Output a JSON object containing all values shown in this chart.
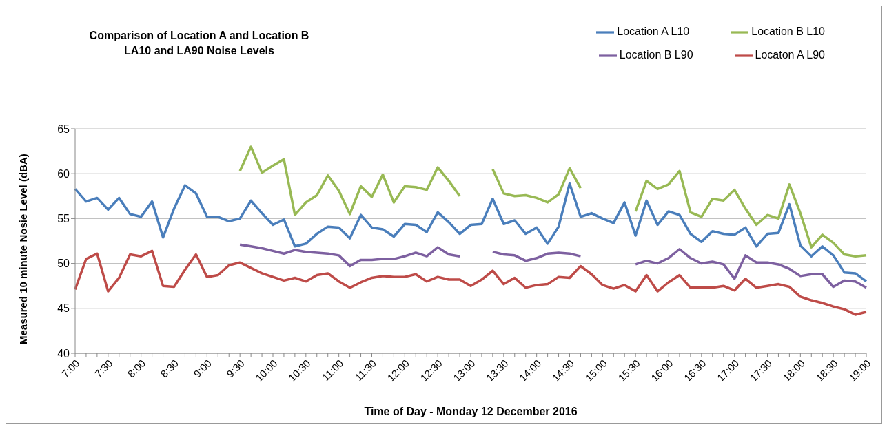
{
  "chart_data": {
    "type": "line",
    "title": "Comparison of Location A and Location B\nLA10 and LA90 Noise Levels",
    "xlabel": "Time of Day - Monday 12 December 2016",
    "ylabel": "Measured 10 minute Nosie Level (dBA)",
    "categories": [
      "7:00",
      null,
      null,
      "7:30",
      null,
      null,
      "8:00",
      null,
      null,
      "8:30",
      null,
      null,
      "9:00",
      null,
      null,
      "9:30",
      null,
      null,
      "10:00",
      null,
      null,
      "10:30",
      null,
      null,
      "11:00",
      null,
      null,
      "11:30",
      null,
      null,
      "12:00",
      null,
      null,
      "12:30",
      null,
      null,
      "13:00",
      null,
      null,
      "13:30",
      null,
      null,
      "14:00",
      null,
      null,
      "14:30",
      null,
      null,
      "15:00",
      null,
      null,
      "15:30",
      null,
      null,
      "16:00",
      null,
      null,
      "16:30",
      null,
      null,
      "17:00",
      null,
      null,
      "17:30",
      null,
      null,
      "18:00",
      null,
      null,
      "18:30",
      null,
      null,
      "19:00"
    ],
    "series": [
      {
        "name": "Location A L10",
        "color": "#4a7ebb",
        "values": [
          58.3,
          56.9,
          57.3,
          56.0,
          57.3,
          55.5,
          55.2,
          56.9,
          52.9,
          56.1,
          58.7,
          57.8,
          55.2,
          55.2,
          54.7,
          55.0,
          57.0,
          55.6,
          54.3,
          54.9,
          51.9,
          52.2,
          53.3,
          54.1,
          54.0,
          52.8,
          55.4,
          54.0,
          53.8,
          53.0,
          54.4,
          54.3,
          53.5,
          55.7,
          54.6,
          53.3,
          54.3,
          54.4,
          57.2,
          54.4,
          54.8,
          53.3,
          54.0,
          52.2,
          54.1,
          58.9,
          55.2,
          55.6,
          55.0,
          54.5,
          56.8,
          53.1,
          57.0,
          54.3,
          55.8,
          55.4,
          53.3,
          52.4,
          53.6,
          53.3,
          53.2,
          54.0,
          51.9,
          53.3,
          53.4,
          56.6,
          52.0,
          50.8,
          51.9,
          50.9,
          49.0,
          48.9,
          48.0
        ]
      },
      {
        "name": "Locaton A L90",
        "color": "#be4b48",
        "values": [
          47.1,
          50.5,
          51.1,
          46.9,
          48.4,
          51.0,
          50.8,
          51.4,
          47.5,
          47.4,
          49.3,
          51.0,
          48.5,
          48.7,
          49.8,
          50.1,
          49.5,
          48.9,
          48.5,
          48.1,
          48.4,
          48.0,
          48.7,
          48.9,
          48.0,
          47.3,
          47.9,
          48.4,
          48.6,
          48.5,
          48.5,
          48.8,
          48.0,
          48.5,
          48.2,
          48.2,
          47.5,
          48.2,
          49.2,
          47.7,
          48.4,
          47.3,
          47.6,
          47.7,
          48.5,
          48.4,
          49.7,
          48.8,
          47.6,
          47.2,
          47.6,
          46.9,
          48.7,
          46.9,
          47.9,
          48.7,
          47.3,
          47.3,
          47.3,
          47.5,
          47.0,
          48.3,
          47.3,
          47.5,
          47.7,
          47.4,
          46.3,
          45.9,
          45.6,
          45.2,
          44.9,
          44.3,
          44.6
        ]
      },
      {
        "name": "Location B L10",
        "color": "#98b954",
        "values": [
          null,
          null,
          null,
          null,
          null,
          null,
          null,
          null,
          null,
          null,
          null,
          null,
          null,
          null,
          null,
          60.3,
          63.0,
          60.1,
          60.9,
          61.6,
          55.4,
          56.8,
          57.6,
          59.8,
          58.1,
          55.5,
          58.6,
          57.4,
          59.9,
          56.8,
          58.6,
          58.5,
          58.2,
          60.7,
          59.2,
          57.5,
          null,
          null,
          60.5,
          57.8,
          57.5,
          57.6,
          57.3,
          56.8,
          57.7,
          60.6,
          58.4,
          null,
          null,
          null,
          null,
          55.8,
          59.2,
          58.3,
          58.8,
          60.3,
          55.7,
          55.2,
          57.2,
          57.0,
          58.2,
          56.1,
          54.3,
          55.4,
          55.0,
          58.8,
          55.6,
          51.8,
          53.2,
          52.3,
          51.0,
          50.8,
          50.9
        ]
      },
      {
        "name": "Location B L90",
        "color": "#7d60a0",
        "values": [
          null,
          null,
          null,
          null,
          null,
          null,
          null,
          null,
          null,
          null,
          null,
          null,
          null,
          null,
          null,
          52.1,
          51.9,
          51.7,
          51.4,
          51.1,
          51.5,
          51.3,
          51.2,
          51.1,
          50.9,
          49.7,
          50.4,
          50.4,
          50.5,
          50.5,
          50.8,
          51.2,
          50.8,
          51.8,
          51.0,
          50.8,
          null,
          null,
          51.3,
          51.0,
          50.9,
          50.3,
          50.6,
          51.1,
          51.2,
          51.1,
          50.8,
          null,
          null,
          null,
          null,
          49.9,
          50.3,
          50.0,
          50.6,
          51.6,
          50.6,
          50.0,
          50.2,
          49.9,
          48.3,
          50.9,
          50.1,
          50.1,
          49.9,
          49.4,
          48.6,
          48.8,
          48.8,
          47.4,
          48.1,
          48.0,
          47.3
        ]
      }
    ],
    "ylim": [
      40,
      65
    ],
    "yticks": [
      40,
      45,
      50,
      55,
      60,
      65
    ],
    "grid": "y",
    "legend": "top right",
    "marker": "none",
    "line_style": "solid"
  }
}
